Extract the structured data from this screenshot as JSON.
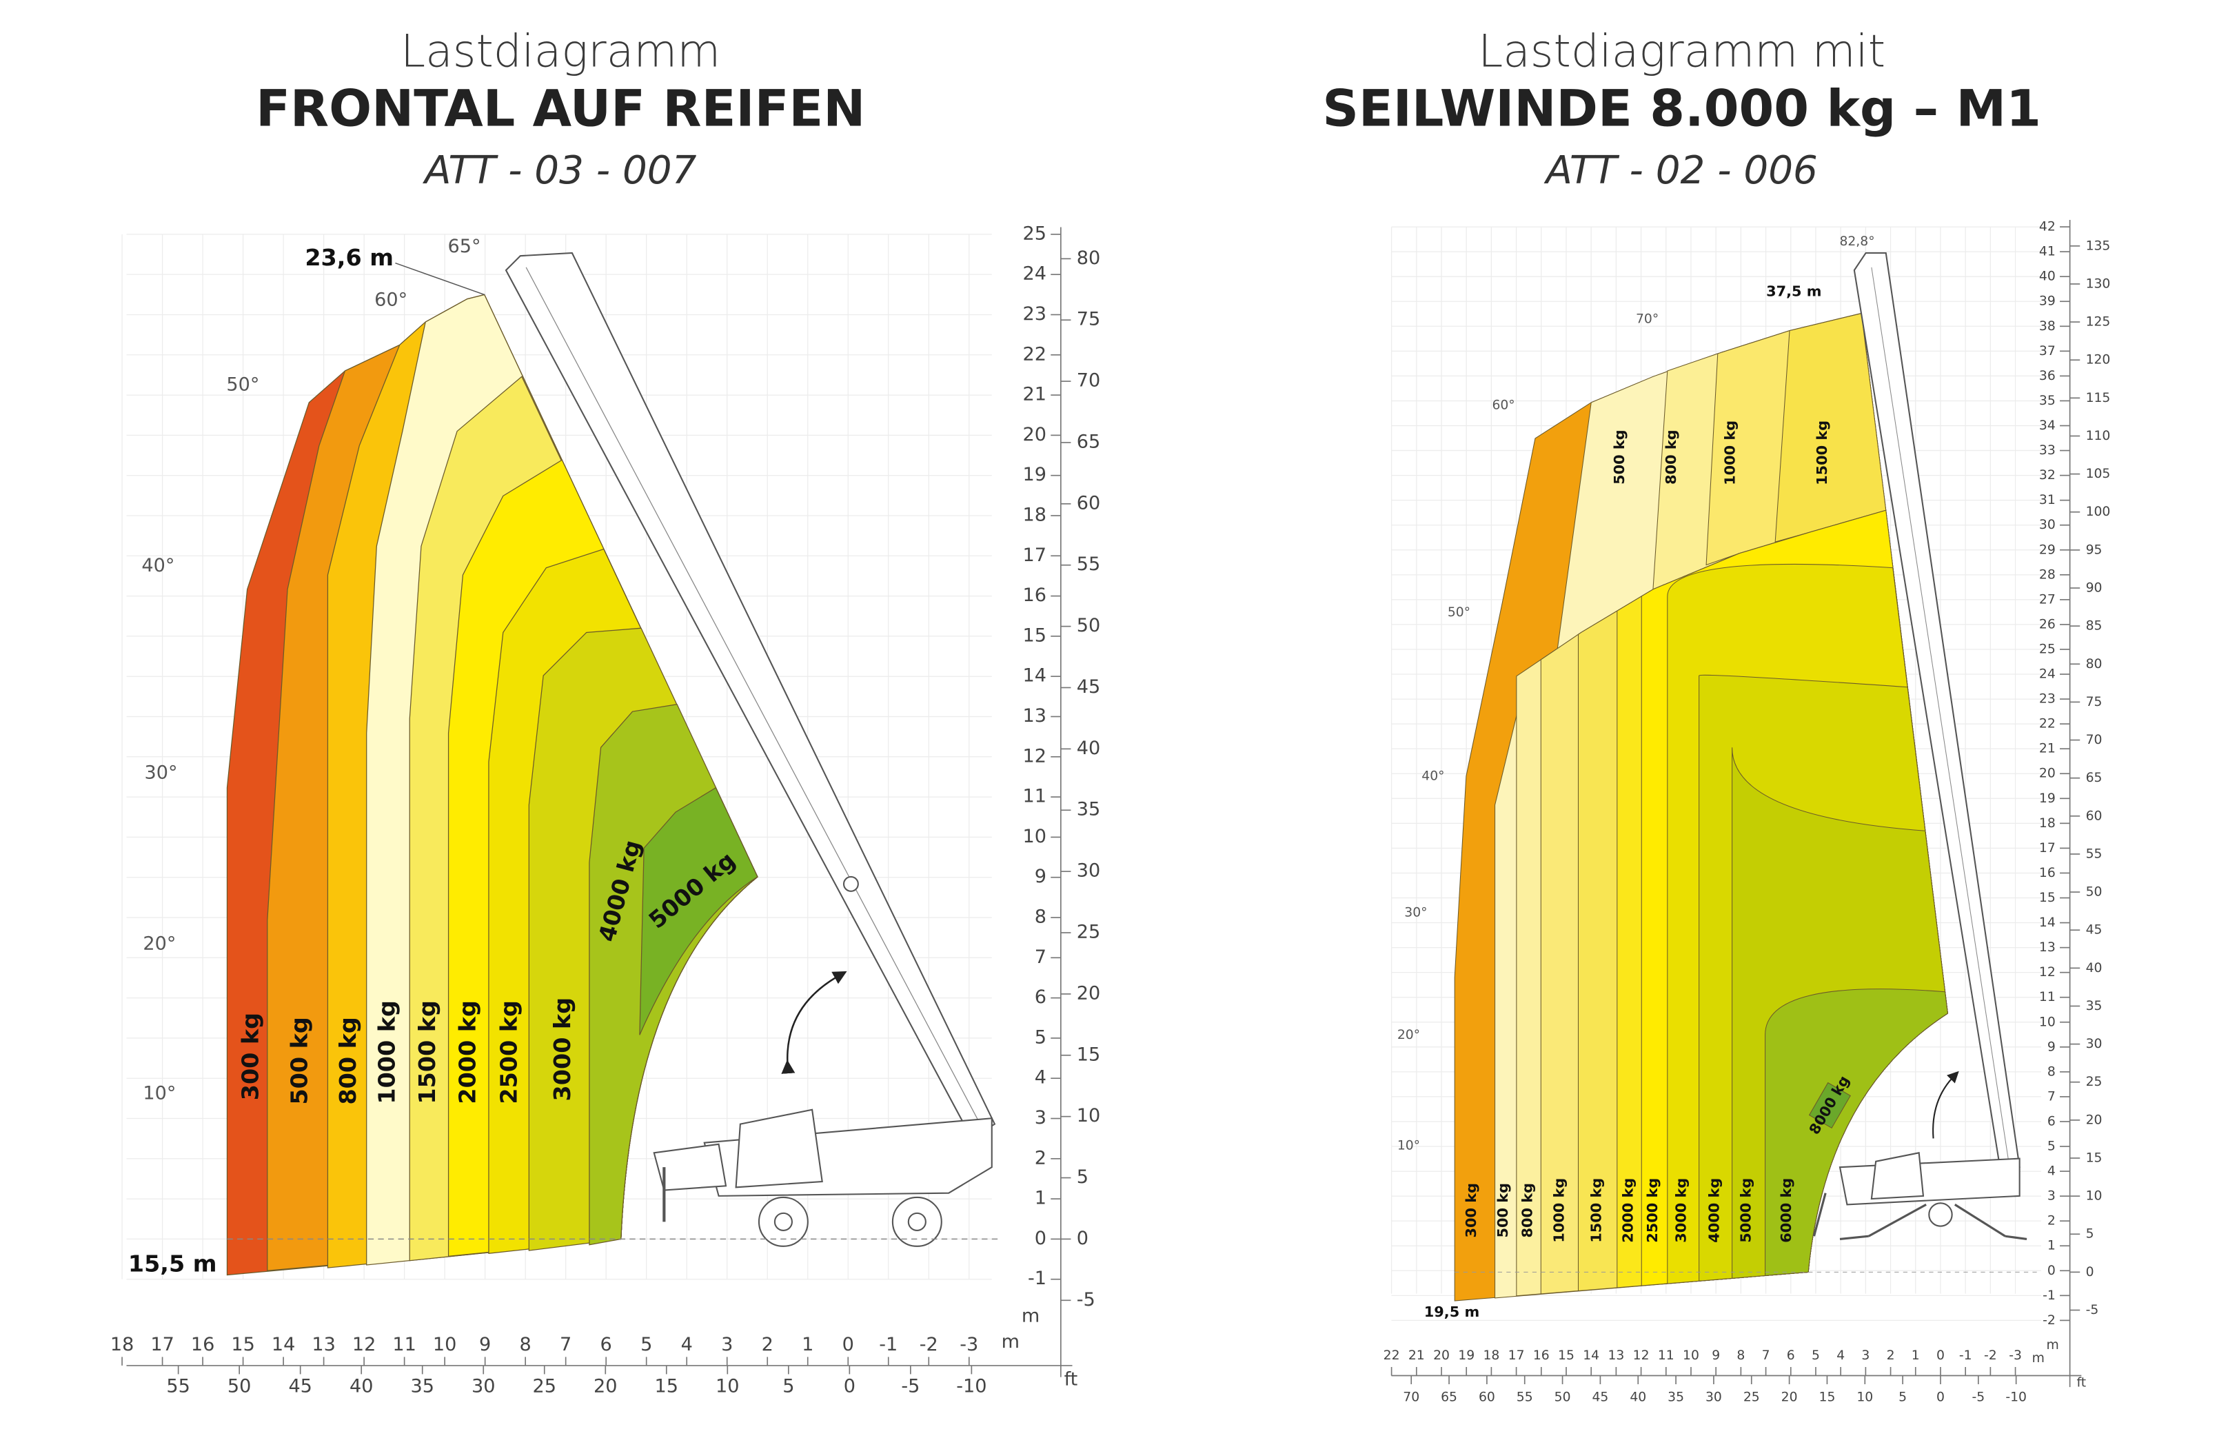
{
  "left": {
    "title": [
      "Lastdiagramm",
      "FRONTAL AUF REIFEN",
      "ATT - 03 - 007"
    ],
    "reach_labels": [
      "23,6 m",
      "15,5 m"
    ],
    "angles": [
      "65°",
      "60°",
      "50°",
      "40°",
      "30°",
      "20°",
      "10°"
    ],
    "zones": [
      "300 kg",
      "500 kg",
      "800 kg",
      "1000 kg",
      "1500 kg",
      "2000 kg",
      "2500 kg",
      "3000 kg",
      "4000 kg",
      "5000 kg"
    ],
    "y_m": [
      25,
      24,
      23,
      22,
      21,
      20,
      19,
      18,
      17,
      16,
      15,
      14,
      13,
      12,
      11,
      10,
      9,
      8,
      7,
      6,
      5,
      4,
      3,
      2,
      1,
      0,
      -1
    ],
    "y_ft": [
      80,
      75,
      70,
      65,
      60,
      55,
      50,
      45,
      40,
      35,
      30,
      25,
      20,
      15,
      10,
      5,
      0,
      -5
    ],
    "x_m": [
      18,
      17,
      16,
      15,
      14,
      13,
      12,
      11,
      10,
      9,
      8,
      7,
      6,
      5,
      4,
      3,
      2,
      1,
      0,
      -1,
      -2,
      -3
    ],
    "x_ft": [
      55,
      50,
      45,
      40,
      35,
      30,
      25,
      20,
      15,
      10,
      5,
      0,
      -5,
      -10
    ],
    "units": {
      "y": "m",
      "x": "m",
      "ft": "ft"
    }
  },
  "right": {
    "title": [
      "Lastdiagramm mit",
      "SEILWINDE 8.000 kg – M1",
      "ATT - 02 - 006"
    ],
    "reach_labels": [
      "37,5 m",
      "19,5 m"
    ],
    "angles": [
      "82,8°",
      "70°",
      "60°",
      "50°",
      "40°",
      "30°",
      "20°",
      "10°"
    ],
    "upper_zones": [
      "500 kg",
      "800 kg",
      "1000 kg",
      "1500 kg"
    ],
    "lower_zones": [
      "300 kg",
      "500 kg",
      "800 kg",
      "1000 kg",
      "1500 kg",
      "2000 kg",
      "2500 kg",
      "3000 kg",
      "4000 kg",
      "5000 kg",
      "6000 kg",
      "8000 kg"
    ],
    "y_m": [
      42,
      41,
      40,
      39,
      38,
      37,
      36,
      35,
      34,
      33,
      32,
      31,
      30,
      29,
      28,
      27,
      26,
      25,
      24,
      23,
      22,
      21,
      20,
      19,
      18,
      17,
      16,
      15,
      14,
      13,
      12,
      11,
      10,
      9,
      8,
      7,
      6,
      5,
      4,
      3,
      2,
      1,
      0,
      -1,
      -2
    ],
    "y_ft": [
      135,
      130,
      125,
      120,
      115,
      110,
      105,
      100,
      95,
      90,
      85,
      80,
      75,
      70,
      65,
      60,
      55,
      50,
      45,
      40,
      35,
      30,
      25,
      20,
      15,
      10,
      5,
      0,
      -5
    ],
    "x_m": [
      22,
      21,
      20,
      19,
      18,
      17,
      16,
      15,
      14,
      13,
      12,
      11,
      10,
      9,
      8,
      7,
      6,
      5,
      4,
      3,
      2,
      1,
      0,
      -1,
      -2,
      -3
    ],
    "x_ft": [
      70,
      65,
      60,
      55,
      50,
      45,
      40,
      35,
      30,
      25,
      20,
      15,
      10,
      5,
      0,
      -5,
      -10
    ],
    "units": {
      "y": "m",
      "x": "m",
      "ft": "ft"
    }
  }
}
